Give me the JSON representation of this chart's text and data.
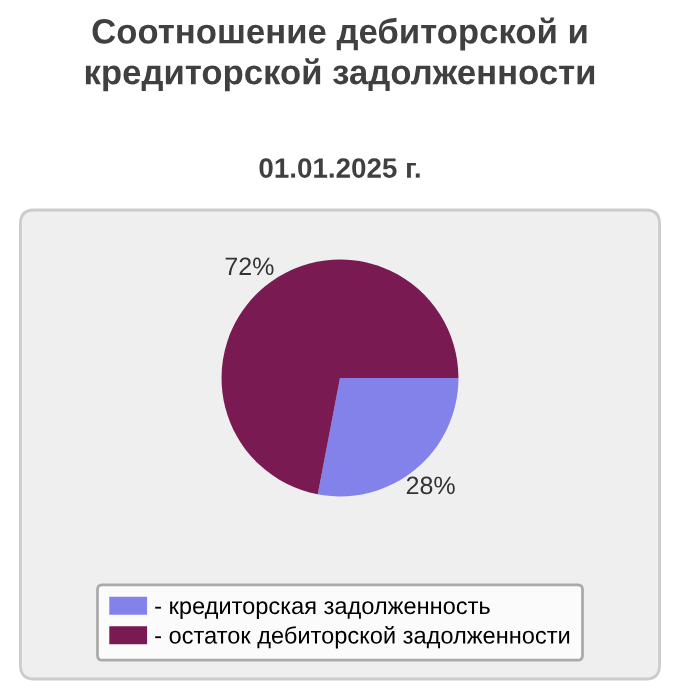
{
  "chart_data": {
    "type": "pie",
    "title": "Соотношение дебиторской и\nкредиторской задолженности",
    "subtitle": "01.01.2025 г.",
    "categories": [
      "- кредиторская задолженность",
      "- остаток дебиторской задолженности"
    ],
    "values": [
      28,
      72
    ],
    "colors": [
      "#8282ea",
      "#7a1a52"
    ],
    "value_labels": [
      "28%",
      "72%"
    ],
    "legend": "bottom"
  }
}
